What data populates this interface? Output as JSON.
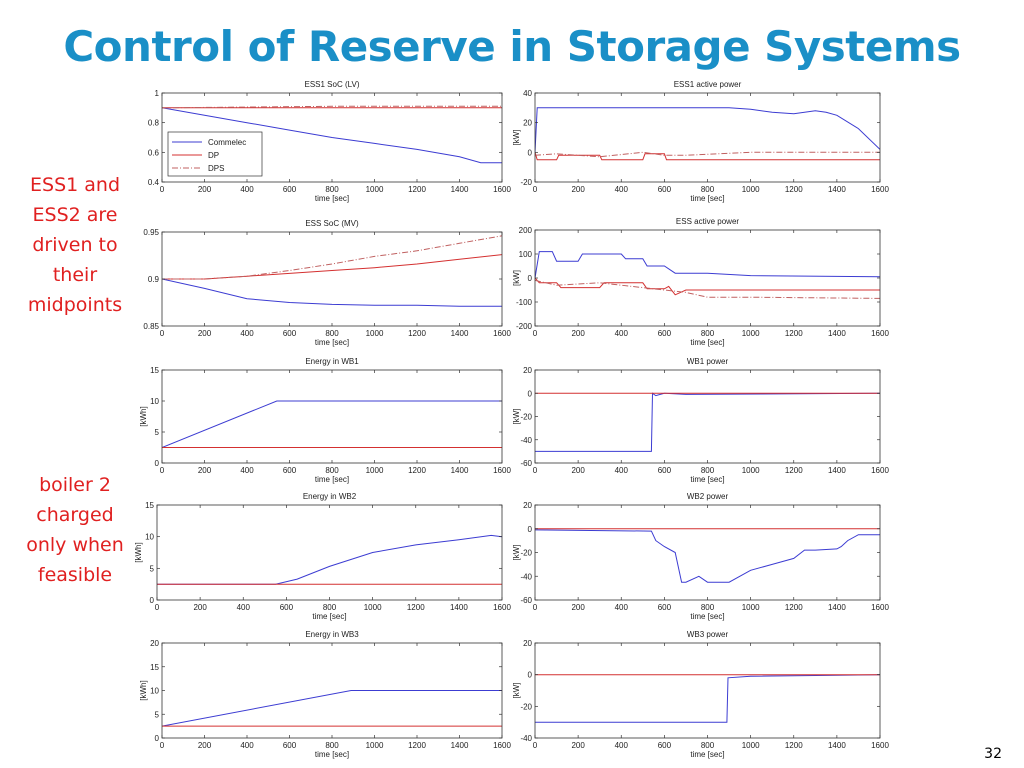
{
  "slide": {
    "title": "Control of Reserve in Storage Systems",
    "note_ess": "ESS1 and ESS2 are driven to their midpoints",
    "note_boiler": "boiler 2 charged only when feasible",
    "page_number": "32"
  },
  "colors": {
    "title": "#1a8fc7",
    "note": "#e02020",
    "commelec": "#3c3cd2",
    "dp": "#d43030",
    "dps": "#c06060"
  },
  "chart_data": [
    {
      "type": "line",
      "title": "ESS1 SoC (LV)",
      "xlabel": "time [sec]",
      "ylabel": "",
      "xlim": [
        0,
        1600
      ],
      "ylim": [
        0.4,
        1
      ],
      "xticks": [
        0,
        200,
        400,
        600,
        800,
        1000,
        1200,
        1400,
        1600
      ],
      "yticks": [
        0.4,
        0.6,
        0.8,
        1
      ],
      "ytick_labels": [
        "0.4",
        "0.6",
        "0.8",
        "1"
      ],
      "legend": {
        "placement": "bottom-left",
        "entries": [
          "Commelec",
          "DP",
          "DPS"
        ]
      },
      "series": [
        {
          "name": "Commelec",
          "color": "#3c3cd2",
          "style": "solid",
          "x": [
            0,
            200,
            400,
            600,
            800,
            1000,
            1200,
            1400,
            1500,
            1600
          ],
          "y": [
            0.9,
            0.85,
            0.8,
            0.75,
            0.7,
            0.66,
            0.62,
            0.57,
            0.53,
            0.53
          ]
        },
        {
          "name": "DP",
          "color": "#d43030",
          "style": "solid",
          "x": [
            0,
            1600
          ],
          "y": [
            0.9,
            0.9
          ]
        },
        {
          "name": "DPS",
          "color": "#c06060",
          "style": "dashdot",
          "x": [
            0,
            800,
            1600
          ],
          "y": [
            0.9,
            0.91,
            0.91
          ]
        }
      ]
    },
    {
      "type": "line",
      "title": "ESS1 active power",
      "xlabel": "time [sec]",
      "ylabel": "[kW]",
      "xlim": [
        0,
        1600
      ],
      "ylim": [
        -20,
        40
      ],
      "xticks": [
        0,
        200,
        400,
        600,
        800,
        1000,
        1200,
        1400,
        1600
      ],
      "yticks": [
        -20,
        0,
        20,
        40
      ],
      "series": [
        {
          "name": "Commelec",
          "color": "#3c3cd2",
          "style": "solid",
          "x": [
            0,
            10,
            900,
            1000,
            1100,
            1200,
            1300,
            1350,
            1400,
            1500,
            1600
          ],
          "y": [
            0,
            30,
            30,
            29,
            27,
            26,
            28,
            27,
            25,
            16,
            2
          ]
        },
        {
          "name": "DP",
          "color": "#d43030",
          "style": "solid",
          "x": [
            0,
            10,
            100,
            110,
            300,
            310,
            500,
            510,
            600,
            610,
            1600
          ],
          "y": [
            0,
            -5,
            -5,
            -2,
            -2,
            -5,
            -5,
            -1,
            -1,
            -5,
            -5
          ]
        },
        {
          "name": "DPS",
          "color": "#c06060",
          "style": "dashdot",
          "x": [
            0,
            100,
            300,
            500,
            600,
            700,
            1000,
            1600
          ],
          "y": [
            -2,
            -1,
            -3,
            0,
            -2,
            -2,
            0,
            0
          ]
        }
      ]
    },
    {
      "type": "line",
      "title": "ESS SoC (MV)",
      "xlabel": "time [sec]",
      "ylabel": "",
      "xlim": [
        0,
        1600
      ],
      "ylim": [
        0.85,
        0.95
      ],
      "xticks": [
        0,
        200,
        400,
        600,
        800,
        1000,
        1200,
        1400,
        1600
      ],
      "yticks": [
        0.85,
        0.9,
        0.95
      ],
      "ytick_labels": [
        "0.85",
        "0.9",
        "0.95"
      ],
      "series": [
        {
          "name": "Commelec",
          "color": "#3c3cd2",
          "style": "solid",
          "x": [
            0,
            200,
            400,
            600,
            800,
            1000,
            1200,
            1400,
            1600
          ],
          "y": [
            0.9,
            0.89,
            0.879,
            0.875,
            0.873,
            0.872,
            0.872,
            0.871,
            0.871
          ]
        },
        {
          "name": "DP",
          "color": "#d43030",
          "style": "solid",
          "x": [
            0,
            200,
            400,
            600,
            800,
            1000,
            1200,
            1400,
            1600
          ],
          "y": [
            0.9,
            0.9,
            0.903,
            0.906,
            0.909,
            0.912,
            0.916,
            0.921,
            0.926
          ]
        },
        {
          "name": "DPS",
          "color": "#c06060",
          "style": "dashdot",
          "x": [
            0,
            200,
            400,
            600,
            800,
            1000,
            1200,
            1400,
            1600
          ],
          "y": [
            0.9,
            0.9,
            0.903,
            0.909,
            0.916,
            0.924,
            0.93,
            0.938,
            0.946
          ]
        }
      ]
    },
    {
      "type": "line",
      "title": "ESS active power",
      "xlabel": "time [sec]",
      "ylabel": "[kW]",
      "xlim": [
        0,
        1600
      ],
      "ylim": [
        -200,
        200
      ],
      "xticks": [
        0,
        200,
        400,
        600,
        800,
        1000,
        1200,
        1400,
        1600
      ],
      "yticks": [
        -200,
        -100,
        0,
        100,
        200
      ],
      "series": [
        {
          "name": "Commelec",
          "color": "#3c3cd2",
          "style": "solid",
          "x": [
            0,
            20,
            80,
            100,
            200,
            220,
            400,
            420,
            500,
            520,
            600,
            650,
            700,
            800,
            1000,
            1600
          ],
          "y": [
            0,
            110,
            110,
            70,
            70,
            100,
            100,
            80,
            80,
            50,
            50,
            20,
            20,
            20,
            10,
            5
          ]
        },
        {
          "name": "DP",
          "color": "#d43030",
          "style": "solid",
          "x": [
            0,
            20,
            100,
            120,
            300,
            320,
            500,
            520,
            600,
            620,
            650,
            700,
            1600
          ],
          "y": [
            0,
            -20,
            -20,
            -40,
            -40,
            -20,
            -20,
            -45,
            -45,
            -35,
            -70,
            -50,
            -50
          ]
        },
        {
          "name": "DPS",
          "color": "#c06060",
          "style": "dashdot",
          "x": [
            0,
            100,
            300,
            500,
            600,
            700,
            800,
            1000,
            1600
          ],
          "y": [
            -10,
            -30,
            -20,
            -40,
            -50,
            -60,
            -80,
            -80,
            -85
          ]
        }
      ]
    },
    {
      "type": "line",
      "title": "Energy in WB1",
      "xlabel": "time [sec]",
      "ylabel": "[kWh]",
      "xlim": [
        0,
        1600
      ],
      "ylim": [
        0,
        15
      ],
      "xticks": [
        0,
        200,
        400,
        600,
        800,
        1000,
        1200,
        1400,
        1600
      ],
      "yticks": [
        0,
        5,
        10,
        15
      ],
      "series": [
        {
          "name": "Commelec",
          "color": "#3c3cd2",
          "style": "solid",
          "x": [
            0,
            540,
            1600
          ],
          "y": [
            2.5,
            10,
            10
          ]
        },
        {
          "name": "DP",
          "color": "#d43030",
          "style": "solid",
          "x": [
            0,
            1600
          ],
          "y": [
            2.5,
            2.5
          ]
        }
      ]
    },
    {
      "type": "line",
      "title": "WB1 power",
      "xlabel": "time [sec]",
      "ylabel": "[kW]",
      "xlim": [
        0,
        1600
      ],
      "ylim": [
        -60,
        20
      ],
      "xticks": [
        0,
        200,
        400,
        600,
        800,
        1000,
        1200,
        1400,
        1600
      ],
      "yticks": [
        -60,
        -40,
        -20,
        0,
        20
      ],
      "series": [
        {
          "name": "Commelec",
          "color": "#3c3cd2",
          "style": "solid",
          "x": [
            0,
            540,
            545,
            560,
            600,
            700,
            1600
          ],
          "y": [
            -50,
            -50,
            0,
            -2,
            0,
            -1,
            0
          ]
        },
        {
          "name": "DP",
          "color": "#d43030",
          "style": "solid",
          "x": [
            0,
            1600
          ],
          "y": [
            0,
            0
          ]
        }
      ]
    },
    {
      "type": "line",
      "title": "Energy in WB2",
      "xlabel": "time [sec]",
      "ylabel": "[kWh]",
      "xlim": [
        0,
        1600
      ],
      "ylim": [
        0,
        15
      ],
      "xticks": [
        0,
        200,
        400,
        600,
        800,
        1000,
        1200,
        1400,
        1600
      ],
      "yticks": [
        0,
        5,
        10,
        15
      ],
      "series": [
        {
          "name": "Commelec",
          "color": "#3c3cd2",
          "style": "solid",
          "x": [
            0,
            550,
            650,
            800,
            1000,
            1200,
            1400,
            1550,
            1600
          ],
          "y": [
            2.5,
            2.5,
            3.3,
            5.3,
            7.5,
            8.7,
            9.5,
            10.2,
            10
          ]
        },
        {
          "name": "DP",
          "color": "#d43030",
          "style": "solid",
          "x": [
            0,
            1600
          ],
          "y": [
            2.5,
            2.5
          ]
        }
      ]
    },
    {
      "type": "line",
      "title": "WB2 power",
      "xlabel": "time [sec]",
      "ylabel": "[kW]",
      "xlim": [
        0,
        1600
      ],
      "ylim": [
        -60,
        20
      ],
      "xticks": [
        0,
        200,
        400,
        600,
        800,
        1000,
        1200,
        1400,
        1600
      ],
      "yticks": [
        -60,
        -40,
        -20,
        0,
        20
      ],
      "series": [
        {
          "name": "Commelec",
          "color": "#3c3cd2",
          "style": "solid",
          "x": [
            0,
            540,
            560,
            600,
            650,
            680,
            700,
            760,
            800,
            900,
            1000,
            1100,
            1200,
            1250,
            1300,
            1400,
            1420,
            1450,
            1500,
            1600
          ],
          "y": [
            -1,
            -2,
            -10,
            -15,
            -20,
            -45,
            -45,
            -40,
            -45,
            -45,
            -35,
            -30,
            -25,
            -18,
            -18,
            -17,
            -15,
            -10,
            -5,
            -5
          ]
        },
        {
          "name": "DP",
          "color": "#d43030",
          "style": "solid",
          "x": [
            0,
            1600
          ],
          "y": [
            0,
            0
          ]
        }
      ]
    },
    {
      "type": "line",
      "title": "Energy in WB3",
      "xlabel": "time [sec]",
      "ylabel": "[kWh]",
      "xlim": [
        0,
        1600
      ],
      "ylim": [
        0,
        20
      ],
      "xticks": [
        0,
        200,
        400,
        600,
        800,
        1000,
        1200,
        1400,
        1600
      ],
      "yticks": [
        0,
        5,
        10,
        15,
        20
      ],
      "series": [
        {
          "name": "Commelec",
          "color": "#3c3cd2",
          "style": "solid",
          "x": [
            0,
            890,
            1600
          ],
          "y": [
            2.5,
            10,
            10
          ]
        },
        {
          "name": "DP",
          "color": "#d43030",
          "style": "solid",
          "x": [
            0,
            1600
          ],
          "y": [
            2.5,
            2.5
          ]
        }
      ]
    },
    {
      "type": "line",
      "title": "WB3 power",
      "xlabel": "time [sec]",
      "ylabel": "[kW]",
      "xlim": [
        0,
        1600
      ],
      "ylim": [
        -40,
        20
      ],
      "xticks": [
        0,
        200,
        400,
        600,
        800,
        1000,
        1200,
        1400,
        1600
      ],
      "yticks": [
        -40,
        -20,
        0,
        20
      ],
      "series": [
        {
          "name": "Commelec",
          "color": "#3c3cd2",
          "style": "solid",
          "x": [
            0,
            890,
            895,
            1000,
            1600
          ],
          "y": [
            -30,
            -30,
            -2,
            -1,
            0
          ]
        },
        {
          "name": "DP",
          "color": "#d43030",
          "style": "solid",
          "x": [
            0,
            1600
          ],
          "y": [
            0,
            0
          ]
        }
      ]
    }
  ]
}
